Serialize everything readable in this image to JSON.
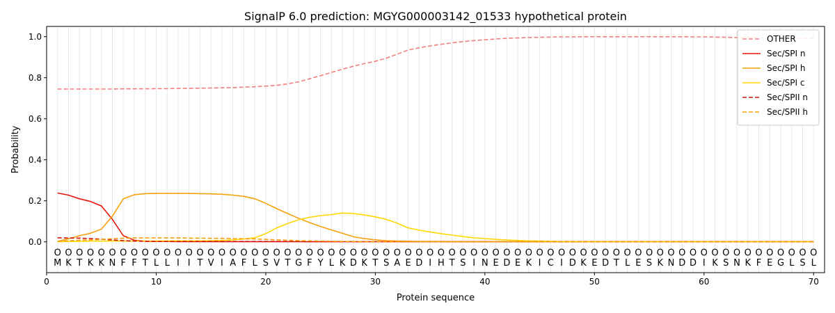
{
  "chart_data": {
    "type": "line",
    "title": "SignalP 6.0 prediction: MGYG000003142_01533 hypothetical protein",
    "xlabel": "Protein sequence",
    "ylabel": "Probability",
    "xlim": [
      0,
      71
    ],
    "ylim": [
      -0.15,
      1.05
    ],
    "x_ticks": [
      0,
      10,
      20,
      30,
      40,
      50,
      60,
      70
    ],
    "y_ticks": [
      0.0,
      0.2,
      0.4,
      0.6,
      0.8,
      1.0
    ],
    "y_tick_labels": [
      "0.0",
      "0.2",
      "0.4",
      "0.6",
      "0.8",
      "1.0"
    ],
    "grid": "vertical lines at each residue",
    "legend_position": "top-right",
    "sequence": [
      "M",
      "K",
      "T",
      "K",
      "K",
      "N",
      "F",
      "F",
      "T",
      "L",
      "L",
      "I",
      "I",
      "T",
      "V",
      "I",
      "A",
      "F",
      "L",
      "S",
      "V",
      "T",
      "G",
      "F",
      "Y",
      "L",
      "K",
      "D",
      "K",
      "T",
      "S",
      "A",
      "E",
      "D",
      "I",
      "H",
      "T",
      "S",
      "I",
      "N",
      "E",
      "D",
      "E",
      "K",
      "I",
      "C",
      "I",
      "D",
      "K",
      "E",
      "D",
      "T",
      "L",
      "E",
      "S",
      "K",
      "N",
      "D",
      "D",
      "I",
      "K",
      "S",
      "N",
      "K",
      "F",
      "E",
      "G",
      "L",
      "S",
      "L"
    ],
    "region_marker": "O",
    "series": [
      {
        "name": "OTHER",
        "color": "#f08080",
        "dash": "dashed",
        "values": [
          0.745,
          0.745,
          0.745,
          0.745,
          0.745,
          0.745,
          0.746,
          0.746,
          0.746,
          0.747,
          0.747,
          0.748,
          0.748,
          0.749,
          0.75,
          0.751,
          0.752,
          0.754,
          0.756,
          0.759,
          0.763,
          0.77,
          0.78,
          0.795,
          0.81,
          0.826,
          0.842,
          0.856,
          0.869,
          0.88,
          0.895,
          0.915,
          0.935,
          0.946,
          0.955,
          0.963,
          0.97,
          0.976,
          0.981,
          0.985,
          0.989,
          0.992,
          0.994,
          0.996,
          0.997,
          0.998,
          0.999,
          0.999,
          1.0,
          1.0,
          1.0,
          1.0,
          1.0,
          1.0,
          1.0,
          1.0,
          1.0,
          1.0,
          0.999,
          0.999,
          0.998,
          0.997,
          0.996,
          0.995,
          0.994,
          0.993,
          0.992,
          0.992,
          0.992,
          0.992
        ]
      },
      {
        "name": "Sec/SPI n",
        "color": "#e8140c",
        "dash": "solid",
        "values": [
          0.238,
          0.228,
          0.21,
          0.197,
          0.175,
          0.11,
          0.03,
          0.008,
          0.003,
          0.002,
          0.002,
          0.001,
          0.001,
          0.001,
          0.001,
          0.001,
          0.001,
          0.001,
          0.001,
          0.001,
          0.001,
          0.001,
          0.001,
          0.001,
          0.001,
          0.001,
          0.001,
          0.001,
          0.001,
          0.001,
          0.001,
          0.001,
          0.001,
          0.001,
          0.001,
          0.001,
          0.001,
          0.001,
          0.001,
          0.001,
          0.001,
          0.001,
          0.001,
          0.001,
          0.001,
          0.001,
          0.001,
          0.001,
          0.001,
          0.001,
          0.001,
          0.001,
          0.001,
          0.001,
          0.001,
          0.001,
          0.001,
          0.001,
          0.001,
          0.001,
          0.001,
          0.001,
          0.001,
          0.001,
          0.001,
          0.001,
          0.001,
          0.001,
          0.001,
          0.001
        ]
      },
      {
        "name": "Sec/SPI h",
        "color": "#f5a00a",
        "dash": "solid",
        "values": [
          0.002,
          0.015,
          0.03,
          0.042,
          0.062,
          0.125,
          0.21,
          0.23,
          0.235,
          0.236,
          0.236,
          0.236,
          0.236,
          0.235,
          0.234,
          0.232,
          0.228,
          0.222,
          0.21,
          0.188,
          0.162,
          0.138,
          0.115,
          0.094,
          0.075,
          0.058,
          0.042,
          0.025,
          0.016,
          0.01,
          0.006,
          0.004,
          0.003,
          0.002,
          0.002,
          0.002,
          0.001,
          0.001,
          0.001,
          0.001,
          0.001,
          0.001,
          0.001,
          0.001,
          0.001,
          0.001,
          0.001,
          0.001,
          0.001,
          0.001,
          0.001,
          0.001,
          0.001,
          0.001,
          0.001,
          0.001,
          0.001,
          0.001,
          0.001,
          0.001,
          0.001,
          0.001,
          0.001,
          0.001,
          0.001,
          0.001,
          0.001,
          0.001,
          0.001,
          0.001
        ]
      },
      {
        "name": "Sec/SPI c",
        "color": "#ffd700",
        "dash": "solid",
        "values": [
          0.001,
          0.002,
          0.003,
          0.004,
          0.004,
          0.004,
          0.004,
          0.004,
          0.004,
          0.004,
          0.004,
          0.005,
          0.005,
          0.005,
          0.006,
          0.007,
          0.009,
          0.014,
          0.02,
          0.04,
          0.068,
          0.09,
          0.108,
          0.12,
          0.128,
          0.133,
          0.141,
          0.138,
          0.131,
          0.122,
          0.11,
          0.091,
          0.068,
          0.057,
          0.048,
          0.04,
          0.033,
          0.026,
          0.02,
          0.016,
          0.012,
          0.009,
          0.007,
          0.005,
          0.004,
          0.003,
          0.002,
          0.002,
          0.001,
          0.001,
          0.001,
          0.001,
          0.001,
          0.001,
          0.001,
          0.001,
          0.001,
          0.001,
          0.001,
          0.001,
          0.001,
          0.001,
          0.001,
          0.001,
          0.001,
          0.001,
          0.001,
          0.001,
          0.001,
          0.001
        ]
      },
      {
        "name": "Sec/SPII n",
        "color": "#d0100c",
        "dash": "dashed",
        "values": [
          0.02,
          0.019,
          0.018,
          0.016,
          0.013,
          0.009,
          0.006,
          0.004,
          0.003,
          0.002,
          0.002,
          0.002,
          0.002,
          0.002,
          0.002,
          0.002,
          0.002,
          0.002,
          0.002,
          0.002,
          0.002,
          0.002,
          0.002,
          0.001,
          0.001,
          0.001,
          0.001,
          0.001,
          0.001,
          0.001,
          0.001,
          0.001,
          0.001,
          0.001,
          0.001,
          0.001,
          0.001,
          0.001,
          0.001,
          0.001,
          0.001,
          0.001,
          0.001,
          0.001,
          0.001,
          0.001,
          0.001,
          0.001,
          0.001,
          0.001,
          0.001,
          0.001,
          0.001,
          0.001,
          0.001,
          0.001,
          0.001,
          0.001,
          0.001,
          0.001,
          0.001,
          0.001,
          0.001,
          0.001,
          0.001,
          0.001,
          0.001,
          0.001,
          0.001,
          0.001
        ]
      },
      {
        "name": "Sec/SPII h",
        "color": "#f5a00a",
        "dash": "dashed",
        "values": [
          0.002,
          0.005,
          0.008,
          0.01,
          0.012,
          0.015,
          0.018,
          0.019,
          0.019,
          0.019,
          0.019,
          0.019,
          0.018,
          0.018,
          0.017,
          0.017,
          0.016,
          0.015,
          0.014,
          0.012,
          0.01,
          0.008,
          0.006,
          0.005,
          0.004,
          0.003,
          0.002,
          0.002,
          0.001,
          0.001,
          0.001,
          0.001,
          0.001,
          0.001,
          0.001,
          0.001,
          0.001,
          0.001,
          0.001,
          0.001,
          0.001,
          0.001,
          0.001,
          0.001,
          0.001,
          0.001,
          0.001,
          0.001,
          0.001,
          0.001,
          0.001,
          0.001,
          0.001,
          0.001,
          0.001,
          0.001,
          0.001,
          0.001,
          0.001,
          0.001,
          0.001,
          0.001,
          0.001,
          0.001,
          0.001,
          0.001,
          0.001,
          0.001,
          0.001,
          0.001
        ]
      }
    ]
  }
}
